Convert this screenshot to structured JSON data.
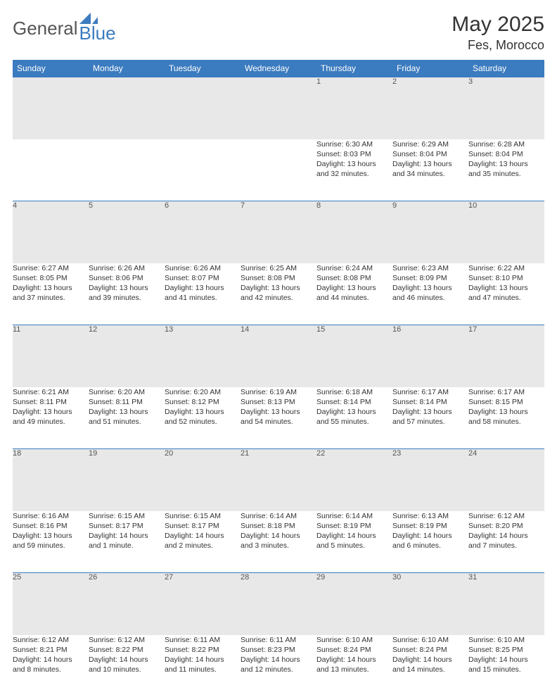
{
  "brand": {
    "word1": "General",
    "word2": "Blue",
    "brand_color": "#3b7bbf"
  },
  "title": {
    "month": "May 2025",
    "location": "Fes, Morocco"
  },
  "dow": [
    "Sunday",
    "Monday",
    "Tuesday",
    "Wednesday",
    "Thursday",
    "Friday",
    "Saturday"
  ],
  "colors": {
    "header_bg": "#3b7bbf",
    "header_text": "#ffffff",
    "daynum_bg": "#e8e8e8",
    "rule": "#3b7bbf",
    "text": "#333333"
  },
  "weeks": [
    [
      null,
      null,
      null,
      null,
      {
        "n": "1",
        "sr": "Sunrise: 6:30 AM",
        "ss": "Sunset: 8:03 PM",
        "d1": "Daylight: 13 hours",
        "d2": "and 32 minutes."
      },
      {
        "n": "2",
        "sr": "Sunrise: 6:29 AM",
        "ss": "Sunset: 8:04 PM",
        "d1": "Daylight: 13 hours",
        "d2": "and 34 minutes."
      },
      {
        "n": "3",
        "sr": "Sunrise: 6:28 AM",
        "ss": "Sunset: 8:04 PM",
        "d1": "Daylight: 13 hours",
        "d2": "and 35 minutes."
      }
    ],
    [
      {
        "n": "4",
        "sr": "Sunrise: 6:27 AM",
        "ss": "Sunset: 8:05 PM",
        "d1": "Daylight: 13 hours",
        "d2": "and 37 minutes."
      },
      {
        "n": "5",
        "sr": "Sunrise: 6:26 AM",
        "ss": "Sunset: 8:06 PM",
        "d1": "Daylight: 13 hours",
        "d2": "and 39 minutes."
      },
      {
        "n": "6",
        "sr": "Sunrise: 6:26 AM",
        "ss": "Sunset: 8:07 PM",
        "d1": "Daylight: 13 hours",
        "d2": "and 41 minutes."
      },
      {
        "n": "7",
        "sr": "Sunrise: 6:25 AM",
        "ss": "Sunset: 8:08 PM",
        "d1": "Daylight: 13 hours",
        "d2": "and 42 minutes."
      },
      {
        "n": "8",
        "sr": "Sunrise: 6:24 AM",
        "ss": "Sunset: 8:08 PM",
        "d1": "Daylight: 13 hours",
        "d2": "and 44 minutes."
      },
      {
        "n": "9",
        "sr": "Sunrise: 6:23 AM",
        "ss": "Sunset: 8:09 PM",
        "d1": "Daylight: 13 hours",
        "d2": "and 46 minutes."
      },
      {
        "n": "10",
        "sr": "Sunrise: 6:22 AM",
        "ss": "Sunset: 8:10 PM",
        "d1": "Daylight: 13 hours",
        "d2": "and 47 minutes."
      }
    ],
    [
      {
        "n": "11",
        "sr": "Sunrise: 6:21 AM",
        "ss": "Sunset: 8:11 PM",
        "d1": "Daylight: 13 hours",
        "d2": "and 49 minutes."
      },
      {
        "n": "12",
        "sr": "Sunrise: 6:20 AM",
        "ss": "Sunset: 8:11 PM",
        "d1": "Daylight: 13 hours",
        "d2": "and 51 minutes."
      },
      {
        "n": "13",
        "sr": "Sunrise: 6:20 AM",
        "ss": "Sunset: 8:12 PM",
        "d1": "Daylight: 13 hours",
        "d2": "and 52 minutes."
      },
      {
        "n": "14",
        "sr": "Sunrise: 6:19 AM",
        "ss": "Sunset: 8:13 PM",
        "d1": "Daylight: 13 hours",
        "d2": "and 54 minutes."
      },
      {
        "n": "15",
        "sr": "Sunrise: 6:18 AM",
        "ss": "Sunset: 8:14 PM",
        "d1": "Daylight: 13 hours",
        "d2": "and 55 minutes."
      },
      {
        "n": "16",
        "sr": "Sunrise: 6:17 AM",
        "ss": "Sunset: 8:14 PM",
        "d1": "Daylight: 13 hours",
        "d2": "and 57 minutes."
      },
      {
        "n": "17",
        "sr": "Sunrise: 6:17 AM",
        "ss": "Sunset: 8:15 PM",
        "d1": "Daylight: 13 hours",
        "d2": "and 58 minutes."
      }
    ],
    [
      {
        "n": "18",
        "sr": "Sunrise: 6:16 AM",
        "ss": "Sunset: 8:16 PM",
        "d1": "Daylight: 13 hours",
        "d2": "and 59 minutes."
      },
      {
        "n": "19",
        "sr": "Sunrise: 6:15 AM",
        "ss": "Sunset: 8:17 PM",
        "d1": "Daylight: 14 hours",
        "d2": "and 1 minute."
      },
      {
        "n": "20",
        "sr": "Sunrise: 6:15 AM",
        "ss": "Sunset: 8:17 PM",
        "d1": "Daylight: 14 hours",
        "d2": "and 2 minutes."
      },
      {
        "n": "21",
        "sr": "Sunrise: 6:14 AM",
        "ss": "Sunset: 8:18 PM",
        "d1": "Daylight: 14 hours",
        "d2": "and 3 minutes."
      },
      {
        "n": "22",
        "sr": "Sunrise: 6:14 AM",
        "ss": "Sunset: 8:19 PM",
        "d1": "Daylight: 14 hours",
        "d2": "and 5 minutes."
      },
      {
        "n": "23",
        "sr": "Sunrise: 6:13 AM",
        "ss": "Sunset: 8:19 PM",
        "d1": "Daylight: 14 hours",
        "d2": "and 6 minutes."
      },
      {
        "n": "24",
        "sr": "Sunrise: 6:12 AM",
        "ss": "Sunset: 8:20 PM",
        "d1": "Daylight: 14 hours",
        "d2": "and 7 minutes."
      }
    ],
    [
      {
        "n": "25",
        "sr": "Sunrise: 6:12 AM",
        "ss": "Sunset: 8:21 PM",
        "d1": "Daylight: 14 hours",
        "d2": "and 8 minutes."
      },
      {
        "n": "26",
        "sr": "Sunrise: 6:12 AM",
        "ss": "Sunset: 8:22 PM",
        "d1": "Daylight: 14 hours",
        "d2": "and 10 minutes."
      },
      {
        "n": "27",
        "sr": "Sunrise: 6:11 AM",
        "ss": "Sunset: 8:22 PM",
        "d1": "Daylight: 14 hours",
        "d2": "and 11 minutes."
      },
      {
        "n": "28",
        "sr": "Sunrise: 6:11 AM",
        "ss": "Sunset: 8:23 PM",
        "d1": "Daylight: 14 hours",
        "d2": "and 12 minutes."
      },
      {
        "n": "29",
        "sr": "Sunrise: 6:10 AM",
        "ss": "Sunset: 8:24 PM",
        "d1": "Daylight: 14 hours",
        "d2": "and 13 minutes."
      },
      {
        "n": "30",
        "sr": "Sunrise: 6:10 AM",
        "ss": "Sunset: 8:24 PM",
        "d1": "Daylight: 14 hours",
        "d2": "and 14 minutes."
      },
      {
        "n": "31",
        "sr": "Sunrise: 6:10 AM",
        "ss": "Sunset: 8:25 PM",
        "d1": "Daylight: 14 hours",
        "d2": "and 15 minutes."
      }
    ]
  ]
}
